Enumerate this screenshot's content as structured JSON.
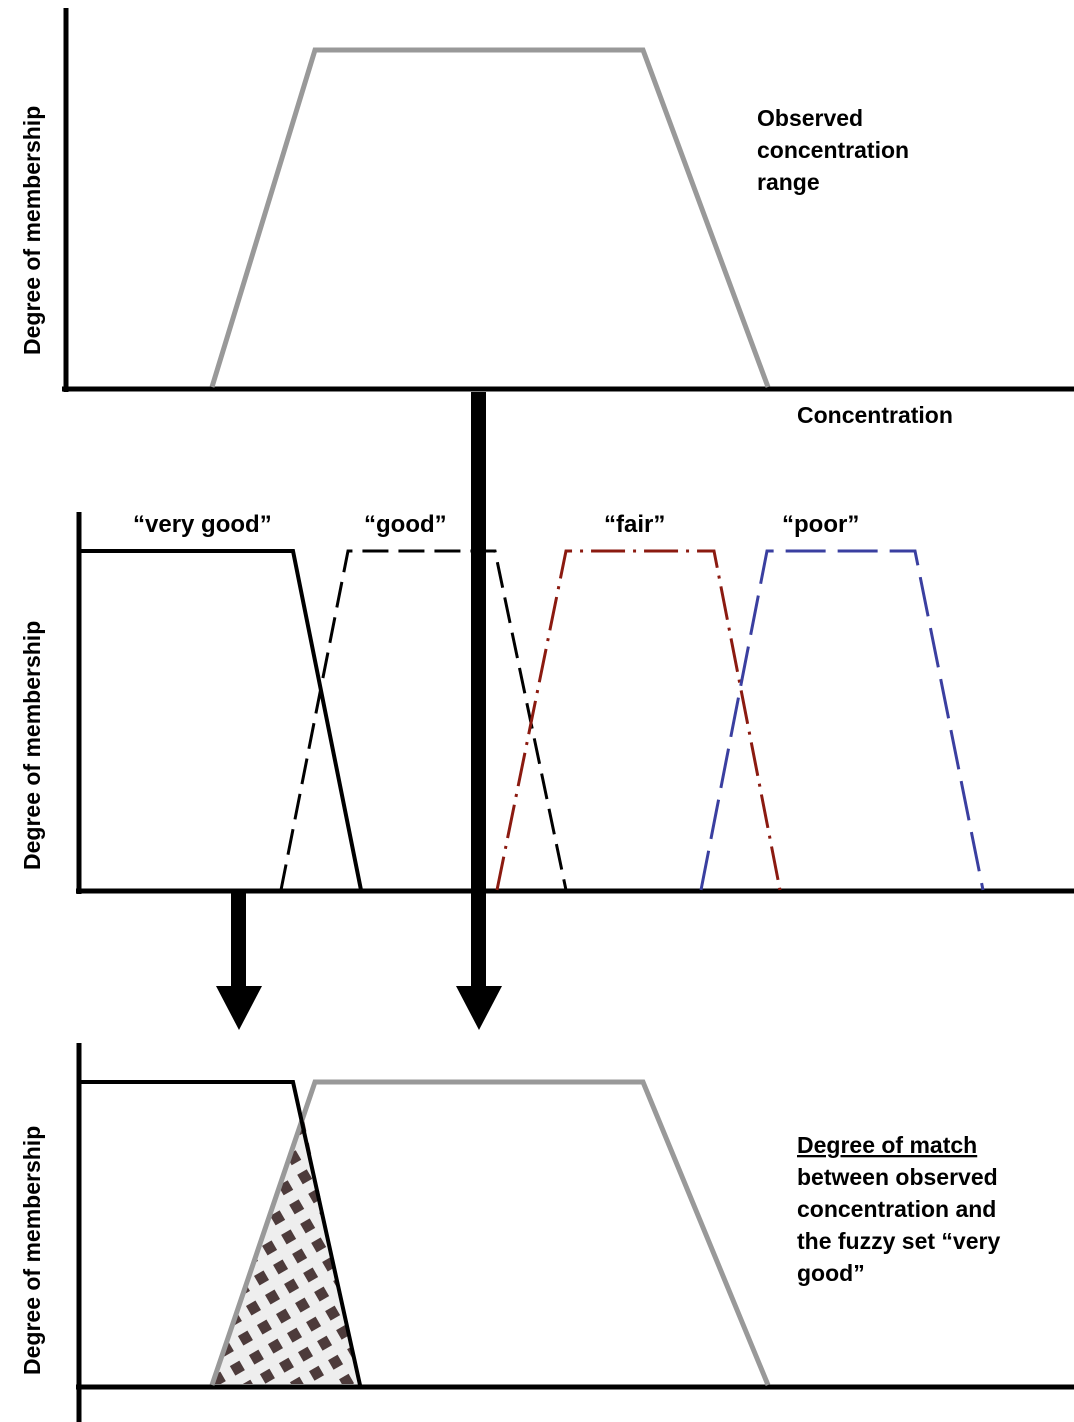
{
  "panels": {
    "top": {
      "ylabel": "Degree of membership",
      "xlabel": "Concentration",
      "annotation": [
        "Observed",
        "concentration",
        "range"
      ]
    },
    "middle": {
      "ylabel": "Degree of membership",
      "sets": [
        {
          "label": "“very good”",
          "style": "solid",
          "color": "#000000"
        },
        {
          "label": "“good”",
          "style": "short-dash",
          "color": "#000000"
        },
        {
          "label": "“fair”",
          "style": "dash-dot",
          "color": "#8b1a10"
        },
        {
          "label": "“poor”",
          "style": "long-dash",
          "color": "#3a3fa0"
        }
      ]
    },
    "bottom": {
      "ylabel": "Degree of membership",
      "annotation_heading": "Degree of match",
      "annotation": [
        "between observed",
        "concentration and",
        "the fuzzy set “very",
        "good”"
      ]
    }
  },
  "colors": {
    "observed_range": "#999999",
    "axis": "#000000",
    "arrow": "#000000",
    "checker_dark": "#4d3b3b",
    "checker_light": "#eeeeee"
  }
}
